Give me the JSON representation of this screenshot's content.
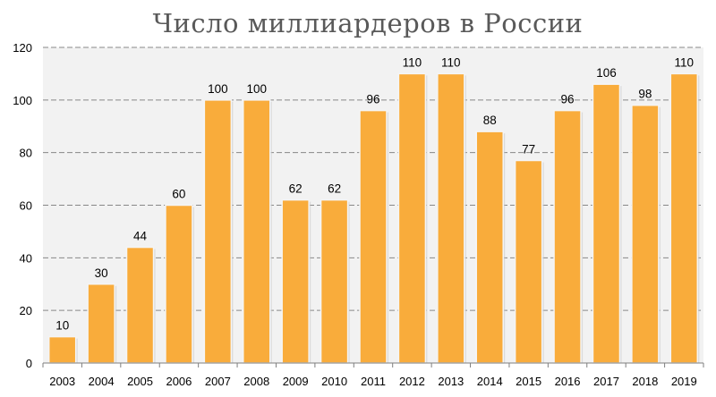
{
  "chart_data": {
    "type": "bar",
    "title": "Число миллиардеров в России",
    "categories": [
      "2003",
      "2004",
      "2005",
      "2006",
      "2007",
      "2008",
      "2009",
      "2010",
      "2011",
      "2012",
      "2013",
      "2014",
      "2015",
      "2016",
      "2017",
      "2018",
      "2019"
    ],
    "values": [
      10,
      30,
      44,
      60,
      100,
      100,
      62,
      62,
      96,
      110,
      110,
      88,
      77,
      96,
      106,
      98,
      110
    ],
    "ylim": [
      0,
      120
    ],
    "yticks": [
      0,
      20,
      40,
      60,
      80,
      100,
      120
    ],
    "grid": true,
    "data_labels": true,
    "xlabel": "",
    "ylabel": "",
    "colors": {
      "bar_fill": "#F9AC3B",
      "bar_stroke": "#F5F5F5",
      "plot_background": "#F2F2F2",
      "gridline": "#888888",
      "title": "#595959"
    }
  }
}
